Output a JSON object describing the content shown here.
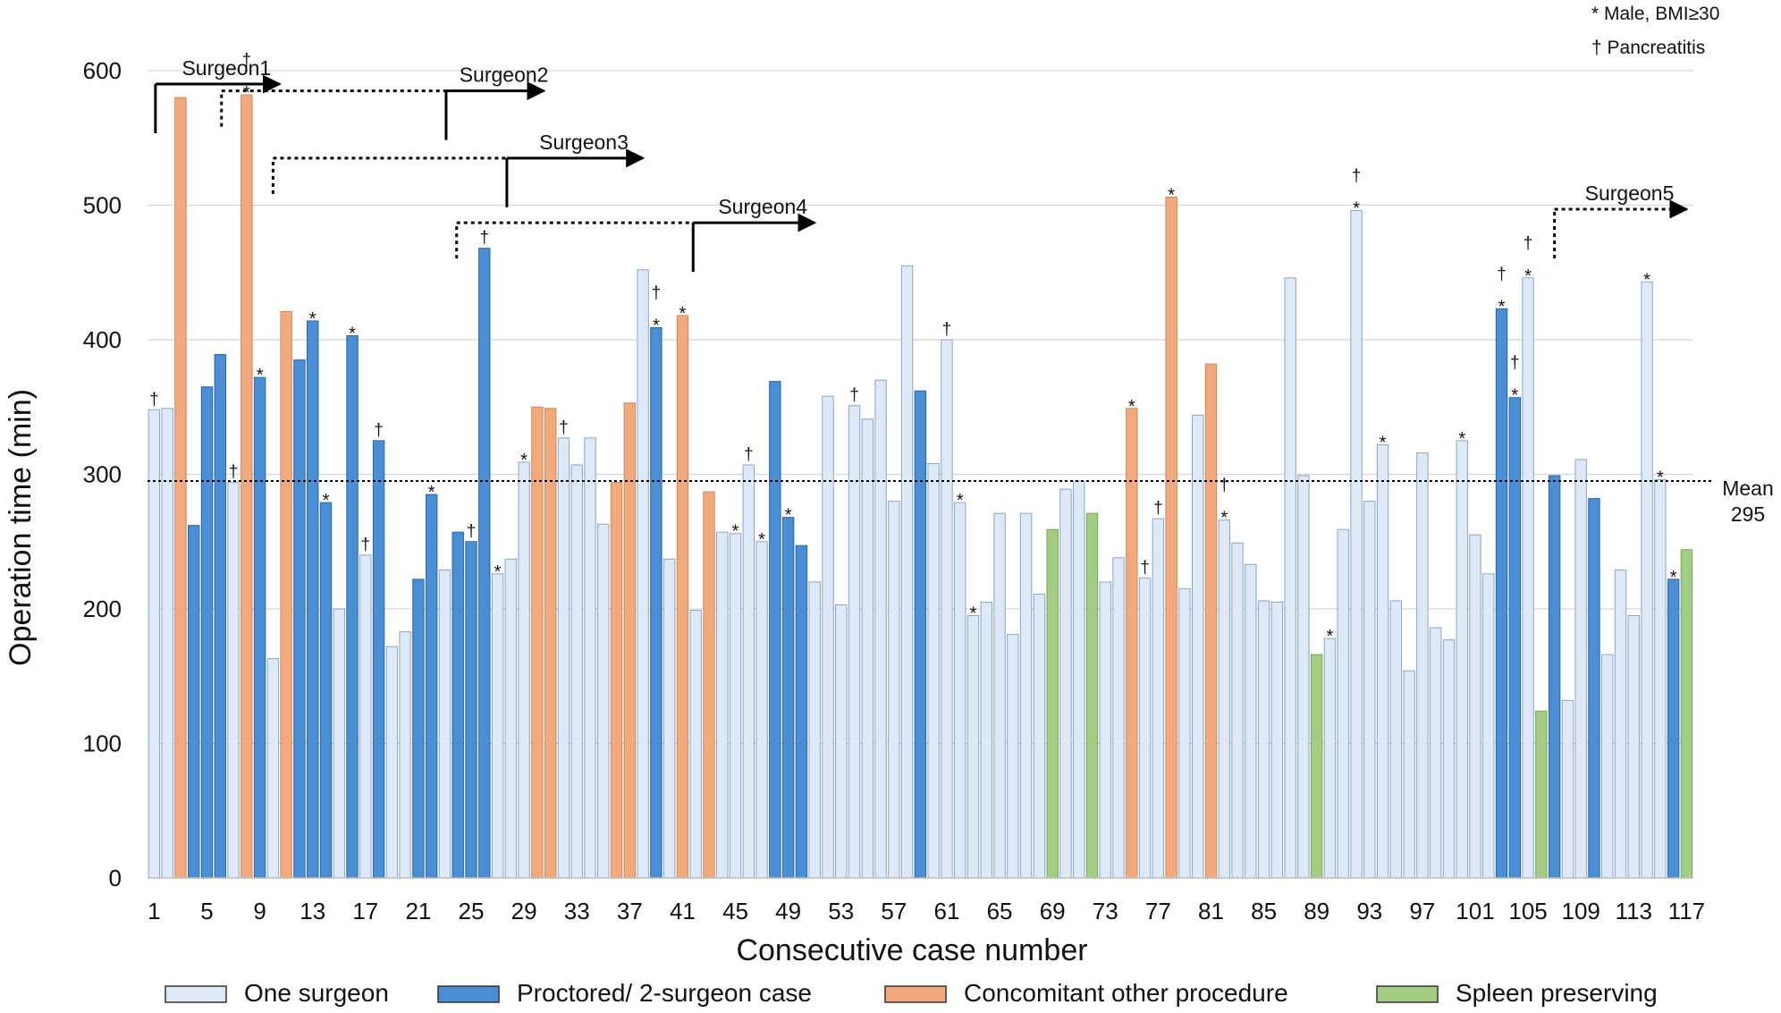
{
  "chart_data": {
    "type": "bar",
    "xlabel": "Consecutive case number",
    "ylabel": "Operation time (min)",
    "ylim": [
      0,
      600
    ],
    "yticks": [
      "0",
      "100",
      "200",
      "300",
      "400",
      "500",
      "600"
    ],
    "xticks": [
      "1",
      "5",
      "9",
      "13",
      "17",
      "21",
      "25",
      "29",
      "33",
      "37",
      "41",
      "45",
      "49",
      "53",
      "57",
      "61",
      "65",
      "69",
      "73",
      "77",
      "81",
      "85",
      "89",
      "93",
      "97",
      "101",
      "105",
      "109",
      "113",
      "117"
    ],
    "grid": true,
    "mean": {
      "value": 295,
      "label_top": "Mean",
      "label_bottom": "295"
    },
    "marker_legend": {
      "star": "* Male, BMI≥30",
      "dagger": "† Pancreatitis"
    },
    "categories_legend": [
      {
        "key": "one",
        "label": "One surgeon",
        "color": "#dde9f6"
      },
      {
        "key": "proc",
        "label": "Proctored/ 2-surgeon case",
        "color": "#4a8fd6"
      },
      {
        "key": "conc",
        "label": "Concomitant other procedure",
        "color": "#f2aa7c"
      },
      {
        "key": "spleen",
        "label": "Spleen preserving",
        "color": "#a4cd84"
      }
    ],
    "cases": [
      {
        "case": 1,
        "value": 348,
        "type": "one",
        "marks": "†"
      },
      {
        "case": 2,
        "value": 349,
        "type": "one",
        "marks": ""
      },
      {
        "case": 3,
        "value": 580,
        "type": "conc",
        "marks": ""
      },
      {
        "case": 4,
        "value": 262,
        "type": "proc",
        "marks": ""
      },
      {
        "case": 5,
        "value": 365,
        "type": "proc",
        "marks": ""
      },
      {
        "case": 6,
        "value": 389,
        "type": "proc",
        "marks": ""
      },
      {
        "case": 7,
        "value": 294,
        "type": "one",
        "marks": "†"
      },
      {
        "case": 8,
        "value": 582,
        "type": "conc",
        "marks": "†*"
      },
      {
        "case": 9,
        "value": 372,
        "type": "proc",
        "marks": "*"
      },
      {
        "case": 10,
        "value": 163,
        "type": "one",
        "marks": ""
      },
      {
        "case": 11,
        "value": 421,
        "type": "conc",
        "marks": ""
      },
      {
        "case": 12,
        "value": 385,
        "type": "proc",
        "marks": ""
      },
      {
        "case": 13,
        "value": 414,
        "type": "proc",
        "marks": "*"
      },
      {
        "case": 14,
        "value": 279,
        "type": "proc",
        "marks": "*"
      },
      {
        "case": 15,
        "value": 200,
        "type": "one",
        "marks": ""
      },
      {
        "case": 16,
        "value": 403,
        "type": "proc",
        "marks": "*"
      },
      {
        "case": 17,
        "value": 240,
        "type": "one",
        "marks": "†"
      },
      {
        "case": 18,
        "value": 325,
        "type": "proc",
        "marks": "†"
      },
      {
        "case": 19,
        "value": 172,
        "type": "one",
        "marks": ""
      },
      {
        "case": 20,
        "value": 183,
        "type": "one",
        "marks": ""
      },
      {
        "case": 21,
        "value": 222,
        "type": "proc",
        "marks": ""
      },
      {
        "case": 22,
        "value": 285,
        "type": "proc",
        "marks": "*"
      },
      {
        "case": 23,
        "value": 229,
        "type": "one",
        "marks": ""
      },
      {
        "case": 24,
        "value": 257,
        "type": "proc",
        "marks": ""
      },
      {
        "case": 25,
        "value": 250,
        "type": "proc",
        "marks": "†"
      },
      {
        "case": 26,
        "value": 468,
        "type": "proc",
        "marks": "†"
      },
      {
        "case": 27,
        "value": 226,
        "type": "one",
        "marks": "*"
      },
      {
        "case": 28,
        "value": 237,
        "type": "one",
        "marks": ""
      },
      {
        "case": 29,
        "value": 309,
        "type": "one",
        "marks": "*"
      },
      {
        "case": 30,
        "value": 350,
        "type": "conc",
        "marks": ""
      },
      {
        "case": 31,
        "value": 349,
        "type": "conc",
        "marks": ""
      },
      {
        "case": 32,
        "value": 327,
        "type": "one",
        "marks": "†"
      },
      {
        "case": 33,
        "value": 307,
        "type": "one",
        "marks": ""
      },
      {
        "case": 34,
        "value": 327,
        "type": "one",
        "marks": ""
      },
      {
        "case": 35,
        "value": 263,
        "type": "one",
        "marks": ""
      },
      {
        "case": 36,
        "value": 294,
        "type": "conc",
        "marks": ""
      },
      {
        "case": 37,
        "value": 353,
        "type": "conc",
        "marks": ""
      },
      {
        "case": 38,
        "value": 452,
        "type": "one",
        "marks": ""
      },
      {
        "case": 39,
        "value": 409,
        "type": "proc",
        "marks": "†*"
      },
      {
        "case": 40,
        "value": 237,
        "type": "one",
        "marks": ""
      },
      {
        "case": 41,
        "value": 418,
        "type": "conc",
        "marks": "*"
      },
      {
        "case": 42,
        "value": 199,
        "type": "one",
        "marks": ""
      },
      {
        "case": 43,
        "value": 287,
        "type": "conc",
        "marks": ""
      },
      {
        "case": 44,
        "value": 257,
        "type": "one",
        "marks": ""
      },
      {
        "case": 45,
        "value": 256,
        "type": "one",
        "marks": "*"
      },
      {
        "case": 46,
        "value": 307,
        "type": "one",
        "marks": "†"
      },
      {
        "case": 47,
        "value": 250,
        "type": "one",
        "marks": "*"
      },
      {
        "case": 48,
        "value": 369,
        "type": "proc",
        "marks": ""
      },
      {
        "case": 49,
        "value": 268,
        "type": "proc",
        "marks": "*"
      },
      {
        "case": 50,
        "value": 247,
        "type": "proc",
        "marks": ""
      },
      {
        "case": 51,
        "value": 220,
        "type": "one",
        "marks": ""
      },
      {
        "case": 52,
        "value": 358,
        "type": "one",
        "marks": ""
      },
      {
        "case": 53,
        "value": 203,
        "type": "one",
        "marks": ""
      },
      {
        "case": 54,
        "value": 351,
        "type": "one",
        "marks": "†"
      },
      {
        "case": 55,
        "value": 341,
        "type": "one",
        "marks": ""
      },
      {
        "case": 56,
        "value": 370,
        "type": "one",
        "marks": ""
      },
      {
        "case": 57,
        "value": 280,
        "type": "one",
        "marks": ""
      },
      {
        "case": 58,
        "value": 455,
        "type": "one",
        "marks": ""
      },
      {
        "case": 59,
        "value": 362,
        "type": "proc",
        "marks": ""
      },
      {
        "case": 60,
        "value": 308,
        "type": "one",
        "marks": ""
      },
      {
        "case": 61,
        "value": 400,
        "type": "one",
        "marks": "†"
      },
      {
        "case": 62,
        "value": 279,
        "type": "one",
        "marks": "*"
      },
      {
        "case": 63,
        "value": 195,
        "type": "one",
        "marks": "*"
      },
      {
        "case": 64,
        "value": 205,
        "type": "one",
        "marks": ""
      },
      {
        "case": 65,
        "value": 271,
        "type": "one",
        "marks": ""
      },
      {
        "case": 66,
        "value": 181,
        "type": "one",
        "marks": ""
      },
      {
        "case": 67,
        "value": 271,
        "type": "one",
        "marks": ""
      },
      {
        "case": 68,
        "value": 211,
        "type": "one",
        "marks": ""
      },
      {
        "case": 69,
        "value": 259,
        "type": "spleen",
        "marks": ""
      },
      {
        "case": 70,
        "value": 289,
        "type": "one",
        "marks": ""
      },
      {
        "case": 71,
        "value": 295,
        "type": "one",
        "marks": ""
      },
      {
        "case": 72,
        "value": 271,
        "type": "spleen",
        "marks": ""
      },
      {
        "case": 73,
        "value": 220,
        "type": "one",
        "marks": ""
      },
      {
        "case": 74,
        "value": 238,
        "type": "one",
        "marks": ""
      },
      {
        "case": 75,
        "value": 349,
        "type": "conc",
        "marks": "*"
      },
      {
        "case": 76,
        "value": 223,
        "type": "one",
        "marks": "†"
      },
      {
        "case": 77,
        "value": 267,
        "type": "one",
        "marks": "†"
      },
      {
        "case": 78,
        "value": 506,
        "type": "conc",
        "marks": "*"
      },
      {
        "case": 79,
        "value": 215,
        "type": "one",
        "marks": ""
      },
      {
        "case": 80,
        "value": 344,
        "type": "one",
        "marks": ""
      },
      {
        "case": 81,
        "value": 382,
        "type": "conc",
        "marks": ""
      },
      {
        "case": 82,
        "value": 266,
        "type": "one",
        "marks": "†*"
      },
      {
        "case": 83,
        "value": 249,
        "type": "one",
        "marks": ""
      },
      {
        "case": 84,
        "value": 233,
        "type": "one",
        "marks": ""
      },
      {
        "case": 85,
        "value": 206,
        "type": "one",
        "marks": ""
      },
      {
        "case": 86,
        "value": 205,
        "type": "one",
        "marks": ""
      },
      {
        "case": 87,
        "value": 446,
        "type": "one",
        "marks": ""
      },
      {
        "case": 88,
        "value": 299,
        "type": "one",
        "marks": ""
      },
      {
        "case": 89,
        "value": 166,
        "type": "spleen",
        "marks": ""
      },
      {
        "case": 90,
        "value": 178,
        "type": "one",
        "marks": "*"
      },
      {
        "case": 91,
        "value": 259,
        "type": "one",
        "marks": ""
      },
      {
        "case": 92,
        "value": 496,
        "type": "one",
        "marks": "†*"
      },
      {
        "case": 93,
        "value": 280,
        "type": "one",
        "marks": ""
      },
      {
        "case": 94,
        "value": 322,
        "type": "one",
        "marks": "*"
      },
      {
        "case": 95,
        "value": 206,
        "type": "one",
        "marks": ""
      },
      {
        "case": 96,
        "value": 154,
        "type": "one",
        "marks": ""
      },
      {
        "case": 97,
        "value": 316,
        "type": "one",
        "marks": ""
      },
      {
        "case": 98,
        "value": 186,
        "type": "one",
        "marks": ""
      },
      {
        "case": 99,
        "value": 177,
        "type": "one",
        "marks": ""
      },
      {
        "case": 100,
        "value": 325,
        "type": "one",
        "marks": "*"
      },
      {
        "case": 101,
        "value": 255,
        "type": "one",
        "marks": ""
      },
      {
        "case": 102,
        "value": 226,
        "type": "one",
        "marks": ""
      },
      {
        "case": 103,
        "value": 423,
        "type": "proc",
        "marks": "†*"
      },
      {
        "case": 104,
        "value": 357,
        "type": "proc",
        "marks": "†*"
      },
      {
        "case": 105,
        "value": 446,
        "type": "one",
        "marks": "†*"
      },
      {
        "case": 106,
        "value": 124,
        "type": "spleen",
        "marks": ""
      },
      {
        "case": 107,
        "value": 299,
        "type": "proc",
        "marks": ""
      },
      {
        "case": 108,
        "value": 132,
        "type": "one",
        "marks": ""
      },
      {
        "case": 109,
        "value": 311,
        "type": "one",
        "marks": ""
      },
      {
        "case": 110,
        "value": 282,
        "type": "proc",
        "marks": ""
      },
      {
        "case": 111,
        "value": 166,
        "type": "one",
        "marks": ""
      },
      {
        "case": 112,
        "value": 229,
        "type": "one",
        "marks": ""
      },
      {
        "case": 113,
        "value": 195,
        "type": "one",
        "marks": ""
      },
      {
        "case": 114,
        "value": 443,
        "type": "one",
        "marks": "*"
      },
      {
        "case": 115,
        "value": 296,
        "type": "one",
        "marks": "*"
      },
      {
        "case": 116,
        "value": 222,
        "type": "proc",
        "marks": "*"
      },
      {
        "case": 117,
        "value": 244,
        "type": "spleen",
        "marks": ""
      }
    ],
    "surgeons": [
      {
        "label": "Surgeon1",
        "dotted_from": null,
        "dotted_y": null,
        "start": 0.6,
        "y": 590,
        "to": 10,
        "dashed": false
      },
      {
        "label": "Surgeon2",
        "dotted_from": 5.6,
        "dotted_y": 585,
        "start": 22.6,
        "y": 585,
        "to": 30,
        "dashed": false
      },
      {
        "label": "Surgeon3",
        "dotted_from": 9.5,
        "dotted_y": 535,
        "start": 27.2,
        "y": 535,
        "to": 37.5,
        "dashed": false
      },
      {
        "label": "Surgeon4",
        "dotted_from": 23.4,
        "dotted_y": 487,
        "start": 41.3,
        "y": 487,
        "to": 50.5,
        "dashed": false
      },
      {
        "label": "Surgeon5",
        "dotted_from": null,
        "dotted_y": null,
        "start": 106.5,
        "y": 497,
        "to": 116.5,
        "dashed": true
      }
    ]
  }
}
